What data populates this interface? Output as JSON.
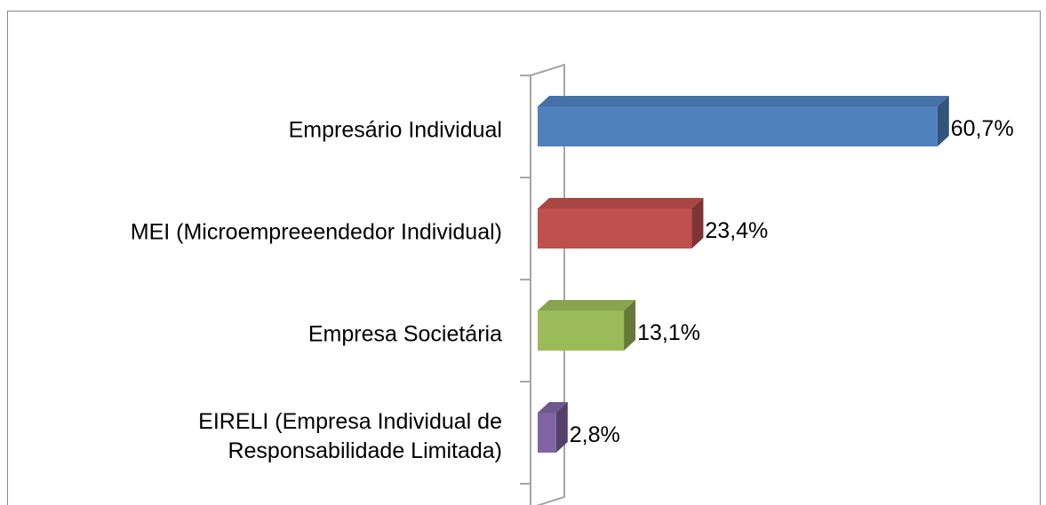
{
  "chart_data": {
    "type": "bar",
    "orientation": "horizontal",
    "categories": [
      "Empresário Individual",
      "MEI (Microempreeendedor Individual)",
      "Empresa Societária",
      "EIRELI (Empresa Individual de\nResponsabilidade Limitada)"
    ],
    "values": [
      60.7,
      23.4,
      13.1,
      2.8
    ],
    "value_labels": [
      "60,7%",
      "23,4%",
      "13,1%",
      "2,8%"
    ],
    "colors": [
      "#4f81bd",
      "#c0504d",
      "#9bbb59",
      "#8064a2"
    ]
  }
}
